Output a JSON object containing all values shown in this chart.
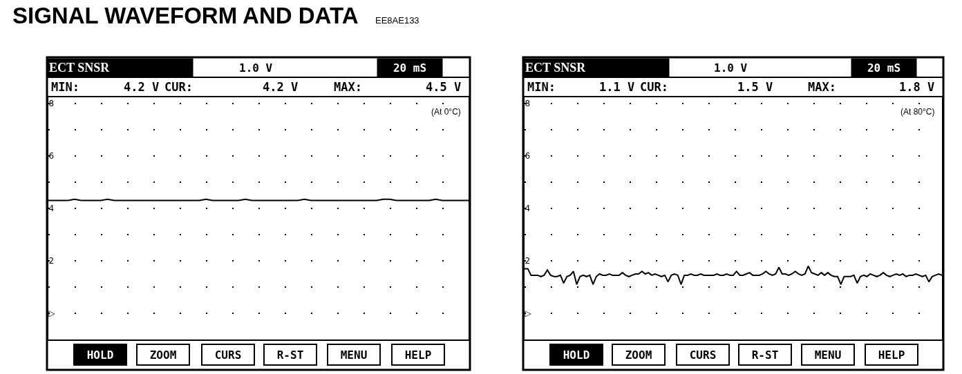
{
  "chart_data": [
    {
      "type": "line",
      "title": "SIGNAL WAVEFORM AND DATA",
      "subtitle": "EE8AE133",
      "annotations": [
        "ECT SNSR",
        "1.0 V",
        "20 mS",
        "MIN:",
        "4.2 V",
        "CUR:",
        "4.2 V",
        "MAX:",
        "4.5 V",
        "(At 0°C)",
        "HOLD",
        "ZOOM",
        "CURS",
        "R-ST",
        "MENU",
        "HELP"
      ],
      "categories": [
        null,
        null,
        null,
        null,
        null,
        null,
        null,
        null,
        null,
        null,
        null,
        null,
        null,
        null,
        null,
        null,
        null,
        null,
        null,
        null,
        null,
        null,
        null,
        null,
        null,
        null,
        null,
        null,
        null,
        null,
        null,
        null,
        null,
        null,
        null,
        null,
        null,
        null,
        null,
        null,
        null,
        null,
        null,
        null,
        null,
        null,
        null,
        null,
        null,
        null,
        null,
        null,
        null,
        null,
        null,
        null,
        null,
        null,
        null,
        null,
        null,
        null,
        null,
        null,
        null
      ],
      "series": [
        {
          "color": "#000000",
          "values": [
            4.3,
            4.3,
            4.3,
            4.3,
            4.35,
            4.3,
            4.3,
            4.3,
            4.3,
            4.35,
            4.3,
            4.3,
            4.3,
            4.3,
            4.3,
            4.3,
            4.3,
            4.3,
            4.3,
            4.3,
            4.3,
            4.3,
            4.3,
            4.3,
            4.35,
            4.3,
            4.3,
            4.3,
            4.3,
            4.3,
            4.35,
            4.3,
            4.3,
            4.3,
            4.3,
            4.3,
            4.3,
            4.3,
            4.3,
            4.35,
            4.3,
            4.3,
            4.3,
            4.3,
            4.3,
            4.3,
            4.3,
            4.3,
            4.3,
            4.3,
            4.3,
            4.35,
            4.35,
            4.3,
            4.3,
            4.3,
            4.3,
            4.3,
            4.3,
            4.35,
            4.3,
            4.3,
            4.3,
            4.3,
            4.3
          ]
        }
      ],
      "ylim": [
        -1,
        8.25
      ],
      "yticks": [
        {
          "value": 0,
          "label": "▷"
        },
        {
          "value": 1,
          "label": null
        },
        2,
        {
          "value": 3,
          "label": null
        },
        4,
        {
          "value": 5,
          "label": null
        },
        6,
        {
          "value": 7,
          "label": null
        },
        8
      ],
      "grid": "y",
      "tick_labels": "y"
    },
    {
      "type": "line",
      "annotations": [
        "ECT SNSR",
        "1.0 V",
        "20 mS",
        "MIN:",
        "1.1 V",
        "CUR:",
        "1.5 V",
        "MAX:",
        "1.8 V",
        "(At 80°C)",
        "HOLD",
        "ZOOM",
        "CURS",
        "R-ST",
        "MENU",
        "HELP"
      ],
      "categories": [
        null,
        null,
        null,
        null,
        null,
        null,
        null,
        null,
        null,
        null,
        null,
        null,
        null,
        null,
        null,
        null,
        null,
        null,
        null,
        null,
        null,
        null,
        null,
        null,
        null,
        null,
        null,
        null,
        null,
        null,
        null,
        null,
        null,
        null,
        null,
        null,
        null,
        null,
        null,
        null,
        null,
        null,
        null,
        null,
        null,
        null,
        null,
        null,
        null,
        null,
        null,
        null,
        null,
        null,
        null,
        null,
        null,
        null,
        null,
        null,
        null,
        null,
        null,
        null,
        null,
        null,
        null,
        null,
        null,
        null,
        null,
        null,
        null,
        null,
        null,
        null,
        null,
        null,
        null,
        null,
        null,
        null,
        null,
        null,
        null,
        null,
        null,
        null,
        null,
        null,
        null,
        null,
        null,
        null,
        null,
        null,
        null,
        null,
        null,
        null,
        null,
        null,
        null,
        null,
        null,
        null,
        null,
        null,
        null,
        null,
        null,
        null,
        null,
        null,
        null,
        null,
        null,
        null,
        null,
        null,
        null,
        null,
        null,
        null,
        null,
        null,
        null,
        null,
        null
      ],
      "series": [
        {
          "color": "#000000",
          "values": [
            1.7,
            1.7,
            1.45,
            1.45,
            1.45,
            1.4,
            1.45,
            1.65,
            1.45,
            1.4,
            1.4,
            1.45,
            1.15,
            1.4,
            1.45,
            1.6,
            1.1,
            1.4,
            1.45,
            1.4,
            1.45,
            1.1,
            1.4,
            1.5,
            1.45,
            1.45,
            1.5,
            1.45,
            1.45,
            1.45,
            1.55,
            1.45,
            1.4,
            1.45,
            1.5,
            1.5,
            1.6,
            1.5,
            1.55,
            1.45,
            1.5,
            1.45,
            1.4,
            1.45,
            1.2,
            1.45,
            1.5,
            1.45,
            1.1,
            1.45,
            1.45,
            1.5,
            1.45,
            1.45,
            1.5,
            1.45,
            1.45,
            1.45,
            1.45,
            1.5,
            1.45,
            1.45,
            1.5,
            1.45,
            1.45,
            1.6,
            1.45,
            1.45,
            1.5,
            1.55,
            1.45,
            1.45,
            1.45,
            1.5,
            1.6,
            1.5,
            1.45,
            1.5,
            1.75,
            1.5,
            1.5,
            1.45,
            1.5,
            1.6,
            1.5,
            1.45,
            1.5,
            1.8,
            1.55,
            1.5,
            1.45,
            1.55,
            1.45,
            1.55,
            1.45,
            1.4,
            1.4,
            1.1,
            1.4,
            1.4,
            1.4,
            1.45,
            1.15,
            1.4,
            1.45,
            1.4,
            1.5,
            1.45,
            1.4,
            1.45,
            1.55,
            1.45,
            1.4,
            1.45,
            1.5,
            1.45,
            1.5,
            1.4,
            1.45,
            1.45,
            1.5,
            1.45,
            1.4,
            1.45,
            1.2,
            1.4,
            1.45,
            1.5,
            1.45
          ]
        }
      ],
      "ylim": [
        -1,
        8.25
      ],
      "yticks": [
        {
          "value": 0,
          "label": "▷"
        },
        {
          "value": 1,
          "label": null
        },
        2,
        {
          "value": 3,
          "label": null
        },
        4,
        {
          "value": 5,
          "label": null
        },
        6,
        {
          "value": 7,
          "label": null
        },
        8
      ],
      "grid": "y",
      "tick_labels": "y"
    }
  ]
}
